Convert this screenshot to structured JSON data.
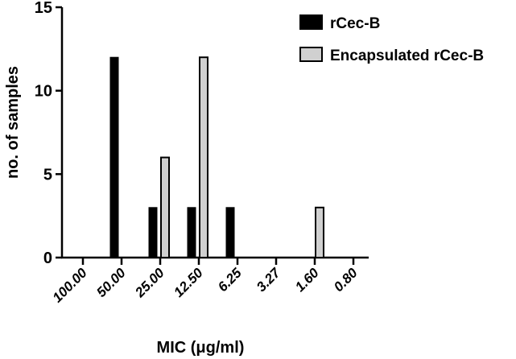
{
  "chart_data": {
    "type": "bar",
    "title": "",
    "xlabel": "MIC (μg/ml)",
    "ylabel": "no. of samples",
    "categories": [
      "100.00",
      "50.00",
      "25.00",
      "12.50",
      "6.25",
      "3.27",
      "1.60",
      "0.80"
    ],
    "ylim": [
      0,
      15
    ],
    "yticks": [
      "0",
      "5",
      "10",
      "15"
    ],
    "grid": false,
    "legend_position": "top-right",
    "series": [
      {
        "name": "rCec-B",
        "color": "#000000",
        "values": [
          0,
          12,
          3,
          3,
          3,
          0,
          0,
          0
        ]
      },
      {
        "name": "Encapsulated rCec-B",
        "color": "#d0d0d0",
        "values": [
          0,
          0,
          6,
          12,
          0,
          0,
          3,
          0
        ]
      }
    ]
  }
}
